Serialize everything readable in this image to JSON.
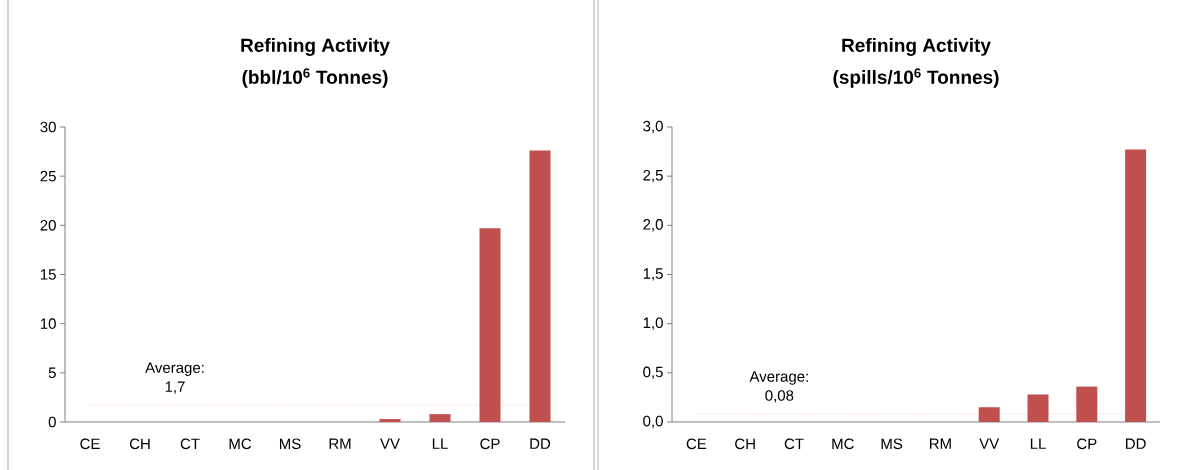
{
  "chart_data": [
    {
      "type": "bar",
      "title": "Refining Activity",
      "subtitle": "(bbl/10$^{6}$ Tonnes)",
      "categories": [
        "CE",
        "CH",
        "CT",
        "MC",
        "MS",
        "RM",
        "VV",
        "LL",
        "CP",
        "DD"
      ],
      "values": [
        0,
        0,
        0,
        0,
        0,
        0,
        0.3,
        0.8,
        19.7,
        27.6
      ],
      "color": "#c0504d",
      "ylim": [
        0,
        30
      ],
      "yticks": [
        0,
        5,
        10,
        15,
        20,
        25,
        30
      ],
      "ref_lines": [
        {
          "axis": "y",
          "value": 1.7,
          "label": "Average: 1,7",
          "color": "#f4a0a0",
          "line_style": "dotted"
        }
      ]
    },
    {
      "type": "bar",
      "title": "Refining Activity",
      "subtitle": "(spills/10$^{6}$ Tonnes)",
      "categories": [
        "CE",
        "CH",
        "CT",
        "MC",
        "MS",
        "RM",
        "VV",
        "LL",
        "CP",
        "DD"
      ],
      "values": [
        0,
        0,
        0,
        0,
        0,
        0,
        0.15,
        0.28,
        0.36,
        2.77
      ],
      "color": "#c0504d",
      "ylim": [
        0,
        3
      ],
      "yticks": [
        {
          "value": 0,
          "label": "0,0"
        },
        {
          "value": 0.5,
          "label": "0,5"
        },
        {
          "value": 1,
          "label": "1,0"
        },
        {
          "value": 1.5,
          "label": "1,5"
        },
        {
          "value": 2,
          "label": "2,0"
        },
        {
          "value": 2.5,
          "label": "2,5"
        },
        {
          "value": 3,
          "label": "3,0"
        }
      ],
      "ref_lines": [
        {
          "axis": "y",
          "value": 0.08,
          "label": "Average: 0,08",
          "color": "#f4a0a0",
          "line_style": "dotted"
        }
      ]
    }
  ]
}
